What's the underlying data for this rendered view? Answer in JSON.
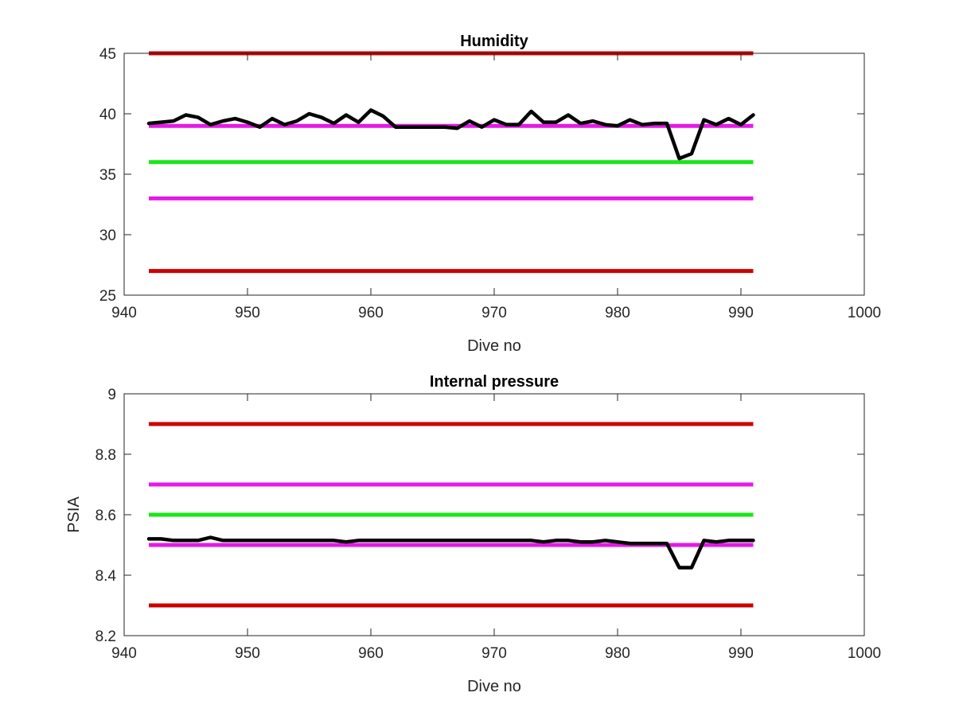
{
  "chart_data": [
    {
      "type": "line",
      "title": "Humidity",
      "xlabel": "Dive no",
      "ylabel": "",
      "xlim": [
        940,
        1000
      ],
      "ylim": [
        25,
        45
      ],
      "xticks": [
        940,
        950,
        960,
        970,
        980,
        990,
        1000
      ],
      "yticks": [
        25,
        30,
        35,
        40,
        45
      ],
      "xtick_labels": [
        "940",
        "950",
        "960",
        "970",
        "980",
        "990",
        "1000"
      ],
      "ytick_labels": [
        "25",
        "30",
        "35",
        "40",
        "45"
      ],
      "grid": false,
      "reference_lines": [
        {
          "y": 45,
          "x": [
            942,
            991
          ],
          "color": "#cc0000"
        },
        {
          "y": 39,
          "x": [
            942,
            991
          ],
          "color": "#e619e6"
        },
        {
          "y": 36,
          "x": [
            942,
            991
          ],
          "color": "#19e619"
        },
        {
          "y": 33,
          "x": [
            942,
            991
          ],
          "color": "#e619e6"
        },
        {
          "y": 27,
          "x": [
            942,
            991
          ],
          "color": "#cc0000"
        }
      ],
      "series": [
        {
          "color": "#000000",
          "x": [
            942,
            943,
            944,
            945,
            946,
            947,
            948,
            949,
            950,
            951,
            952,
            953,
            954,
            955,
            956,
            957,
            958,
            959,
            960,
            961,
            962,
            963,
            964,
            965,
            966,
            967,
            968,
            969,
            970,
            971,
            972,
            973,
            974,
            975,
            976,
            977,
            978,
            979,
            980,
            981,
            982,
            983,
            984,
            985,
            986,
            987,
            988,
            989,
            990,
            991
          ],
          "values": [
            39.2,
            39.3,
            39.4,
            39.9,
            39.7,
            39.1,
            39.4,
            39.6,
            39.3,
            38.9,
            39.6,
            39.1,
            39.4,
            40.0,
            39.7,
            39.2,
            39.9,
            39.3,
            40.3,
            39.8,
            38.9,
            38.9,
            38.9,
            38.9,
            38.9,
            38.8,
            39.4,
            38.9,
            39.5,
            39.1,
            39.1,
            40.2,
            39.3,
            39.3,
            39.9,
            39.2,
            39.4,
            39.1,
            39.0,
            39.5,
            39.1,
            39.2,
            39.2,
            36.3,
            36.7,
            39.5,
            39.1,
            39.6,
            39.1,
            39.9
          ]
        }
      ]
    },
    {
      "type": "line",
      "title": "Internal pressure",
      "xlabel": "Dive no",
      "ylabel": "PSIA",
      "xlim": [
        940,
        1000
      ],
      "ylim": [
        8.2,
        9.0
      ],
      "xticks": [
        940,
        950,
        960,
        970,
        980,
        990,
        1000
      ],
      "yticks": [
        8.2,
        8.4,
        8.6,
        8.8,
        9.0
      ],
      "xtick_labels": [
        "940",
        "950",
        "960",
        "970",
        "980",
        "990",
        "1000"
      ],
      "ytick_labels": [
        "8.2",
        "8.4",
        "8.6",
        "8.8",
        "9"
      ],
      "grid": false,
      "reference_lines": [
        {
          "y": 8.9,
          "x": [
            942,
            991
          ],
          "color": "#cc0000"
        },
        {
          "y": 8.7,
          "x": [
            942,
            991
          ],
          "color": "#e619e6"
        },
        {
          "y": 8.6,
          "x": [
            942,
            991
          ],
          "color": "#19e619"
        },
        {
          "y": 8.5,
          "x": [
            942,
            991
          ],
          "color": "#e619e6"
        },
        {
          "y": 8.3,
          "x": [
            942,
            991
          ],
          "color": "#cc0000"
        }
      ],
      "series": [
        {
          "color": "#000000",
          "x": [
            942,
            943,
            944,
            945,
            946,
            947,
            948,
            949,
            950,
            951,
            952,
            953,
            954,
            955,
            956,
            957,
            958,
            959,
            960,
            961,
            962,
            963,
            964,
            965,
            966,
            967,
            968,
            969,
            970,
            971,
            972,
            973,
            974,
            975,
            976,
            977,
            978,
            979,
            980,
            981,
            982,
            983,
            984,
            985,
            986,
            987,
            988,
            989,
            990,
            991
          ],
          "values": [
            8.52,
            8.52,
            8.515,
            8.515,
            8.515,
            8.525,
            8.515,
            8.515,
            8.515,
            8.515,
            8.515,
            8.515,
            8.515,
            8.515,
            8.515,
            8.515,
            8.51,
            8.515,
            8.515,
            8.515,
            8.515,
            8.515,
            8.515,
            8.515,
            8.515,
            8.515,
            8.515,
            8.515,
            8.515,
            8.515,
            8.515,
            8.515,
            8.51,
            8.515,
            8.515,
            8.51,
            8.51,
            8.515,
            8.51,
            8.505,
            8.505,
            8.505,
            8.505,
            8.425,
            8.425,
            8.515,
            8.51,
            8.515,
            8.515,
            8.515
          ]
        }
      ]
    }
  ]
}
